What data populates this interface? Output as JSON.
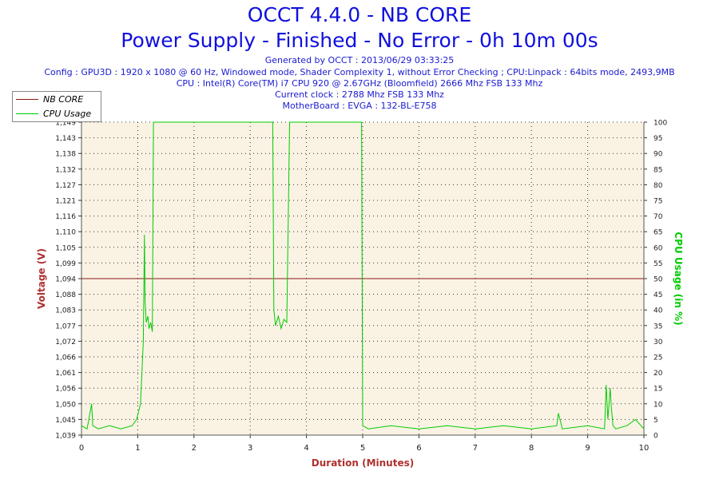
{
  "header": {
    "title": "OCCT 4.4.0 - NB CORE",
    "subtitle": "Power Supply - Finished - No Error - 0h 10m 00s",
    "generated": "Generated by OCCT : 2013/06/29 03:33:25",
    "config": "Config : GPU3D : 1920 x 1080 @ 60 Hz, Windowed mode, Shader Complexity 1, without Error Checking ; CPU:Linpack : 64bits mode, 2493,9MB",
    "cpu": "CPU : Intel(R) Core(TM) i7 CPU 920 @ 2.67GHz (Bloomfield) 2666 Mhz FSB 133 Mhz",
    "clock": "Current clock : 2788 Mhz FSB 133 Mhz",
    "motherboard": "MotherBoard : EVGA : 132-BL-E758"
  },
  "legend": {
    "items": [
      {
        "label": "NB CORE",
        "color": "#8b1a1a"
      },
      {
        "label": "CPU Usage",
        "color": "#00cc00"
      }
    ]
  },
  "colors": {
    "plot_background": "#faf3e4",
    "voltage": "#8b1a1a",
    "cpu": "#00cc00",
    "title": "#1010dd",
    "axis_label_left": "#b03030",
    "axis_label_right": "#00cc00",
    "axis_label_bottom": "#b03030"
  },
  "chart_data": {
    "type": "line",
    "xlabel": "Duration (Minutes)",
    "ylabel": "Voltage (V)",
    "y2label": "CPU Usage (in %)",
    "xlim": [
      0,
      10
    ],
    "ylim": [
      1.039,
      1.149
    ],
    "y2lim": [
      0,
      100
    ],
    "x_ticks": [
      "0",
      "1",
      "2",
      "3",
      "4",
      "5",
      "6",
      "7",
      "8",
      "9",
      "10"
    ],
    "y_ticks": [
      "1,039",
      "1,045",
      "1,050",
      "1,056",
      "1,061",
      "1,066",
      "1,072",
      "1,077",
      "1,083",
      "1,088",
      "1,094",
      "1,099",
      "1,105",
      "1,110",
      "1,116",
      "1,121",
      "1,127",
      "1,132",
      "1,138",
      "1,143",
      "1,149"
    ],
    "y2_ticks": [
      "0",
      "5",
      "10",
      "15",
      "20",
      "25",
      "30",
      "35",
      "40",
      "45",
      "50",
      "55",
      "60",
      "65",
      "70",
      "75",
      "80",
      "85",
      "90",
      "95",
      "100"
    ],
    "grid": true,
    "legend_position": "top-left",
    "series": [
      {
        "name": "NB CORE",
        "axis": "left",
        "x": [
          0,
          10
        ],
        "values": [
          1.094,
          1.094
        ]
      },
      {
        "name": "CPU Usage",
        "axis": "right",
        "x": [
          0,
          0.1,
          0.18,
          0.2,
          0.3,
          0.5,
          0.7,
          0.9,
          0.98,
          1.05,
          1.1,
          1.12,
          1.13,
          1.15,
          1.18,
          1.2,
          1.23,
          1.26,
          1.28,
          1.3,
          1.5,
          2.0,
          2.5,
          3.0,
          3.3,
          3.4,
          3.42,
          3.45,
          3.5,
          3.55,
          3.6,
          3.65,
          3.7,
          3.72,
          3.75,
          4.0,
          4.5,
          4.9,
          4.98,
          5.0,
          5.1,
          5.5,
          6.0,
          6.5,
          7.0,
          7.5,
          8.0,
          8.45,
          8.48,
          8.55,
          9.0,
          9.3,
          9.33,
          9.36,
          9.4,
          9.42,
          9.45,
          9.5,
          9.7,
          9.85,
          10.0
        ],
        "values": [
          3,
          2,
          10,
          3,
          2,
          3,
          2,
          3,
          5,
          10,
          30,
          64,
          43,
          36,
          38,
          34,
          36,
          33,
          100,
          100,
          100,
          100,
          100,
          100,
          100,
          100,
          40,
          35,
          38,
          34,
          37,
          36,
          100,
          100,
          100,
          100,
          100,
          100,
          100,
          3,
          2,
          3,
          2,
          3,
          2,
          3,
          2,
          3,
          7,
          2,
          3,
          2,
          16,
          5,
          15,
          9,
          3,
          2,
          3,
          5,
          2
        ]
      }
    ]
  }
}
